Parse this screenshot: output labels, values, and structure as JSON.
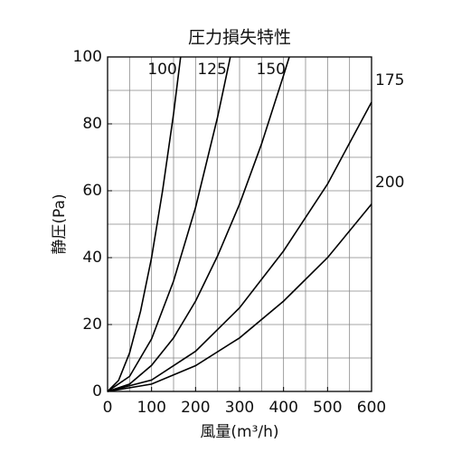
{
  "chart_data": {
    "type": "line",
    "title": "圧力損失特性",
    "x_label": "風量(m³/h)",
    "y_label": "静圧(Pa)",
    "color": "#000000",
    "grid": true,
    "xlim": [
      0,
      600
    ],
    "xticks": [
      0,
      100,
      200,
      300,
      400,
      500,
      600
    ],
    "x_minor_step": 50,
    "ylim": [
      0,
      100
    ],
    "yticks": [
      0,
      20,
      40,
      60,
      80,
      100
    ],
    "y_minor_step": 10,
    "series": [
      {
        "name": "100",
        "x": [
          0,
          25,
          50,
          75,
          100,
          125,
          150,
          166
        ],
        "values": [
          0,
          3.3,
          11.5,
          24,
          40,
          60,
          83,
          100
        ]
      },
      {
        "name": "125",
        "x": [
          0,
          50,
          100,
          150,
          200,
          250,
          279
        ],
        "values": [
          0,
          4.5,
          15.7,
          33,
          55,
          82,
          100
        ]
      },
      {
        "name": "150",
        "x": [
          0,
          50,
          100,
          150,
          200,
          250,
          300,
          350,
          400,
          413
        ],
        "values": [
          0,
          2.2,
          7.8,
          16,
          27,
          40.5,
          56,
          74,
          94.5,
          100
        ]
      },
      {
        "name": "175",
        "x": [
          0,
          100,
          200,
          300,
          400,
          500,
          600
        ],
        "values": [
          0,
          3.4,
          12,
          25,
          42,
          62,
          86.5
        ]
      },
      {
        "name": "200",
        "x": [
          0,
          100,
          200,
          300,
          400,
          500,
          600
        ],
        "values": [
          0,
          2.2,
          7.7,
          16,
          27,
          40,
          56
        ]
      }
    ]
  }
}
